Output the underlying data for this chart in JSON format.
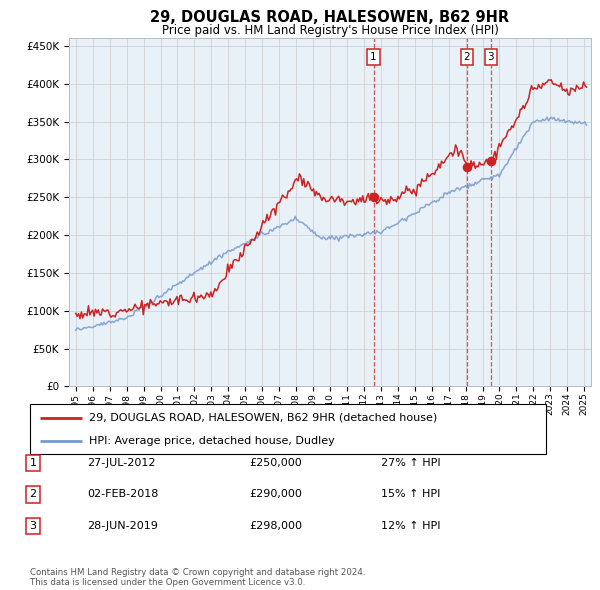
{
  "title": "29, DOUGLAS ROAD, HALESOWEN, B62 9HR",
  "subtitle": "Price paid vs. HM Land Registry's House Price Index (HPI)",
  "red_label": "29, DOUGLAS ROAD, HALESOWEN, B62 9HR (detached house)",
  "blue_label": "HPI: Average price, detached house, Dudley",
  "footer1": "Contains HM Land Registry data © Crown copyright and database right 2024.",
  "footer2": "This data is licensed under the Open Government Licence v3.0.",
  "transactions": [
    {
      "num": 1,
      "date": "27-JUL-2012",
      "price": "£250,000",
      "hpi": "27% ↑ HPI",
      "year": 2012.57
    },
    {
      "num": 2,
      "date": "02-FEB-2018",
      "price": "£290,000",
      "hpi": "15% ↑ HPI",
      "year": 2018.08
    },
    {
      "num": 3,
      "date": "28-JUN-2019",
      "price": "£298,000",
      "hpi": "12% ↑ HPI",
      "year": 2019.49
    }
  ],
  "sale_prices": [
    250000,
    290000,
    298000
  ],
  "ylim": [
    0,
    460000
  ],
  "yticks": [
    0,
    50000,
    100000,
    150000,
    200000,
    250000,
    300000,
    350000,
    400000,
    450000
  ],
  "xlim_start": 1994.6,
  "xlim_end": 2025.4,
  "plot_bg": "#e8f0f8",
  "grid_color": "#cccccc",
  "red_color": "#cc2222",
  "blue_color": "#7799cc"
}
